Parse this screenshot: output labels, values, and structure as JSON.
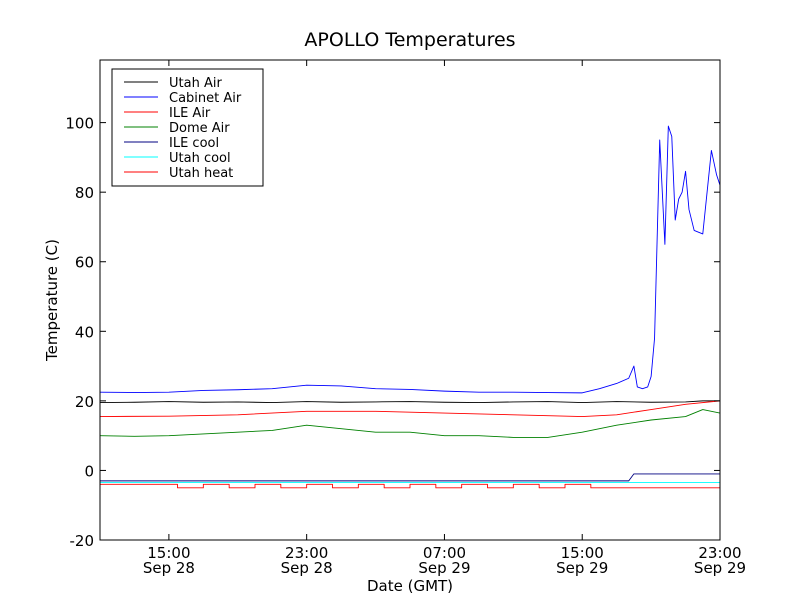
{
  "chart_data": {
    "type": "line",
    "title": "APOLLO Temperatures",
    "xlabel": "Date (GMT)",
    "ylabel": "Temperature (C)",
    "x_unit": "hours since Sep 28 11:00 GMT",
    "xlim": [
      0,
      36
    ],
    "ylim": [
      -20,
      118
    ],
    "yticks": [
      -20,
      0,
      20,
      40,
      60,
      80,
      100
    ],
    "ytick_labels": [
      "-20",
      "0",
      "20",
      "40",
      "60",
      "80",
      "100"
    ],
    "xticks": [
      {
        "x": 4,
        "time": "15:00",
        "date": "Sep 28"
      },
      {
        "x": 12,
        "time": "23:00",
        "date": "Sep 28"
      },
      {
        "x": 20,
        "time": "07:00",
        "date": "Sep 29"
      },
      {
        "x": 28,
        "time": "15:00",
        "date": "Sep 29"
      },
      {
        "x": 36,
        "time": "23:00",
        "date": "Sep 29"
      }
    ],
    "legend_position": "top-left",
    "series": [
      {
        "name": "Utah Air",
        "color": "#000000",
        "x": [
          0,
          2,
          4,
          6,
          8,
          10,
          12,
          14,
          16,
          18,
          20,
          22,
          24,
          26,
          28,
          30,
          32,
          34,
          35,
          36
        ],
        "y": [
          19.5,
          19.6,
          19.8,
          19.6,
          19.7,
          19.5,
          19.8,
          19.6,
          19.7,
          19.8,
          19.6,
          19.5,
          19.7,
          19.8,
          19.5,
          19.8,
          19.6,
          19.7,
          20,
          20
        ]
      },
      {
        "name": "Cabinet Air",
        "color": "#0000ff",
        "x": [
          0,
          2,
          4,
          6,
          8,
          10,
          12,
          14,
          16,
          18,
          20,
          22,
          24,
          26,
          28,
          29,
          30,
          30.7,
          31,
          31.2,
          31.5,
          31.8,
          32,
          32.2,
          32.5,
          32.8,
          33,
          33.2,
          33.4,
          33.6,
          33.8,
          34,
          34.2,
          34.5,
          35,
          35.5,
          35.8,
          36
        ],
        "y": [
          22.5,
          22.4,
          22.5,
          23,
          23.2,
          23.5,
          24.5,
          24.3,
          23.5,
          23.3,
          22.8,
          22.5,
          22.5,
          22.4,
          22.3,
          23.5,
          25,
          26.5,
          30,
          24,
          23.5,
          24,
          27,
          38,
          95,
          65,
          99,
          96,
          72,
          78,
          80,
          86,
          75,
          69,
          68,
          92,
          85,
          82
        ]
      },
      {
        "name": "ILE Air",
        "color": "#ff0000",
        "x": [
          0,
          4,
          8,
          12,
          16,
          20,
          24,
          28,
          30,
          32,
          34,
          36
        ],
        "y": [
          15.5,
          15.6,
          16,
          17,
          17,
          16.5,
          16,
          15.5,
          16,
          17.5,
          19,
          20
        ]
      },
      {
        "name": "Dome Air",
        "color": "#008000",
        "x": [
          0,
          2,
          4,
          6,
          8,
          10,
          12,
          14,
          16,
          18,
          20,
          22,
          24,
          26,
          28,
          30,
          32,
          34,
          35,
          36
        ],
        "y": [
          10,
          9.8,
          10,
          10.5,
          11,
          11.5,
          13,
          12,
          11,
          11,
          10,
          10,
          9.5,
          9.5,
          11,
          13,
          14.5,
          15.5,
          17.5,
          16.5
        ]
      },
      {
        "name": "ILE cool",
        "color": "#000080",
        "x": [
          0,
          30.7,
          31,
          36
        ],
        "y": [
          -3,
          -3,
          -1,
          -1
        ]
      },
      {
        "name": "Utah cool",
        "color": "#00ffff",
        "x": [
          0,
          36
        ],
        "y": [
          -3.5,
          -3.5
        ]
      },
      {
        "name": "Utah heat",
        "color": "#ff0000",
        "x": [
          0,
          3,
          4.5,
          6,
          7.5,
          9,
          10.5,
          12,
          13.5,
          15,
          16.5,
          18,
          19.5,
          21,
          22.5,
          24,
          25.5,
          27,
          28.5,
          30,
          31.5,
          33,
          34.5,
          36
        ],
        "y": [
          -4,
          -4,
          -5,
          -4,
          -5,
          -4,
          -5,
          -4,
          -5,
          -4,
          -5,
          -4,
          -5,
          -4,
          -5,
          -4,
          -5,
          -4,
          -5,
          -5,
          -5,
          -5,
          -5,
          -5
        ],
        "step": true
      }
    ]
  }
}
